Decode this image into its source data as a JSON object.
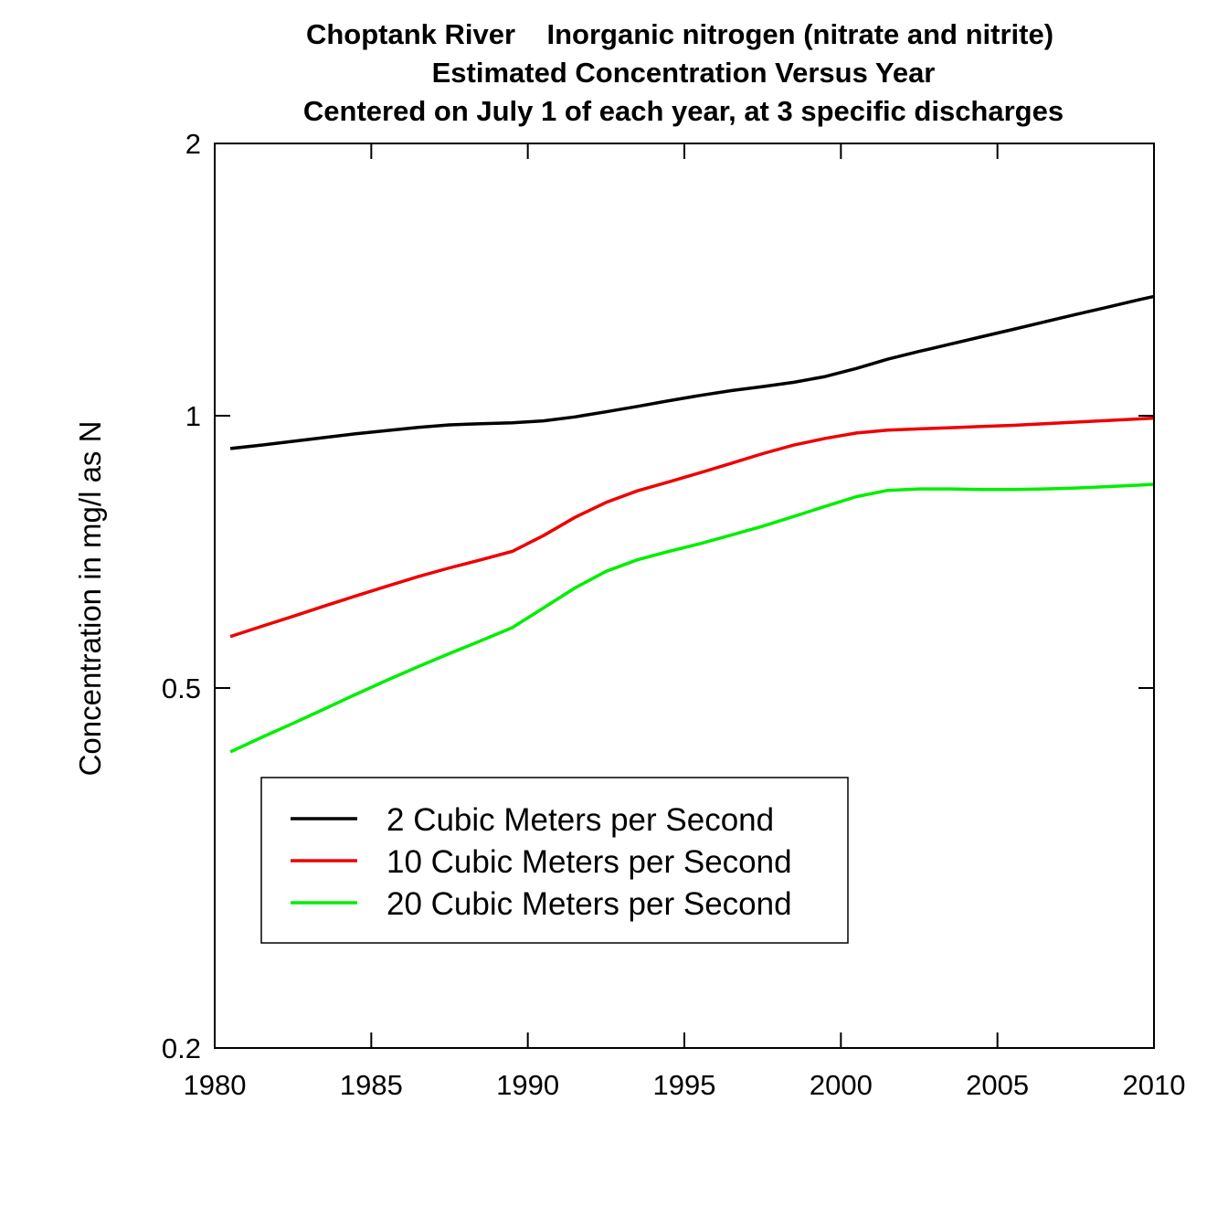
{
  "chart_data": {
    "type": "line",
    "title": [
      "Choptank River    Inorganic nitrogen (nitrate and nitrite)",
      "Estimated Concentration Versus Year",
      "Centered on July 1 of each year, at 3 specific discharges"
    ],
    "xlabel": "",
    "ylabel": "Concentration in mg/l as N",
    "xlim": [
      1980,
      2010
    ],
    "ylim": [
      0.2,
      2
    ],
    "yscale": "log",
    "xticks": [
      "1980",
      "1985",
      "1990",
      "1995",
      "2000",
      "2005",
      "2010"
    ],
    "yticks": [
      "0.2",
      "0.5",
      "1",
      "2"
    ],
    "grid": false,
    "legend_position": "lower-left",
    "x": [
      1980.5,
      1981.5,
      1982.5,
      1983.5,
      1984.5,
      1985.5,
      1986.5,
      1987.5,
      1988.5,
      1989.5,
      1990.5,
      1991.5,
      1992.5,
      1993.5,
      1994.5,
      1995.5,
      1996.5,
      1997.5,
      1998.5,
      1999.5,
      2000.5,
      2001.5,
      2002.5,
      2003.5,
      2004.5,
      2005.5,
      2006.5,
      2007.5,
      2008.5,
      2009.5,
      2010
    ],
    "series": [
      {
        "name": "2 Cubic Meters per Second",
        "color": "#000000",
        "values": [
          0.92,
          0.928,
          0.937,
          0.946,
          0.955,
          0.963,
          0.971,
          0.977,
          0.98,
          0.982,
          0.987,
          0.997,
          1.01,
          1.024,
          1.039,
          1.053,
          1.066,
          1.077,
          1.089,
          1.105,
          1.128,
          1.155,
          1.178,
          1.2,
          1.223,
          1.246,
          1.27,
          1.294,
          1.318,
          1.343,
          1.355
        ]
      },
      {
        "name": "10 Cubic Meters per Second",
        "color": "#ee0000",
        "values": [
          0.57,
          0.585,
          0.6,
          0.616,
          0.632,
          0.648,
          0.664,
          0.679,
          0.693,
          0.708,
          0.737,
          0.772,
          0.802,
          0.826,
          0.845,
          0.865,
          0.886,
          0.908,
          0.928,
          0.944,
          0.957,
          0.964,
          0.967,
          0.97,
          0.973,
          0.976,
          0.98,
          0.984,
          0.988,
          0.992,
          0.994
        ]
      },
      {
        "name": "20 Cubic Meters per Second",
        "color": "#00ee00",
        "values": [
          0.425,
          0.441,
          0.457,
          0.474,
          0.492,
          0.51,
          0.528,
          0.546,
          0.564,
          0.583,
          0.613,
          0.645,
          0.673,
          0.693,
          0.708,
          0.722,
          0.738,
          0.755,
          0.774,
          0.794,
          0.814,
          0.827,
          0.83,
          0.83,
          0.829,
          0.829,
          0.83,
          0.832,
          0.835,
          0.838,
          0.84
        ]
      }
    ]
  }
}
